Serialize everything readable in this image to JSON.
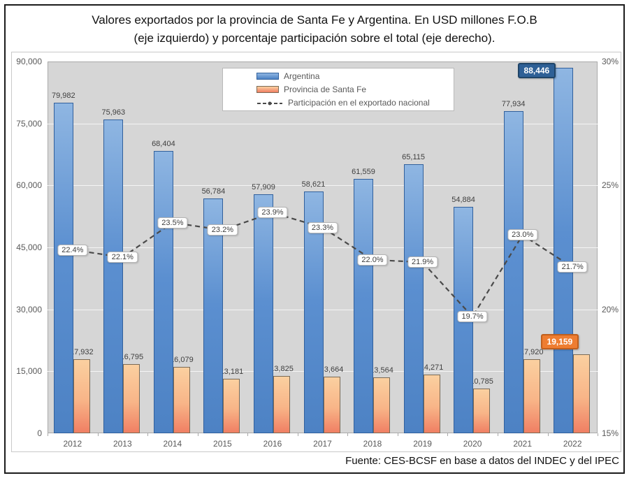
{
  "title_lines": [
    "Valores exportados por la provincia de Santa Fe y Argentina. En USD millones F.O.B",
    "(eje izquierdo) y porcentaje participación sobre el total (eje derecho)."
  ],
  "footer": "Fuente: CES-BCSF en base a datos del INDEC y del IPEC",
  "colors": {
    "plot_background": "#d6d6d6",
    "gridline": "#f4f4f4",
    "argentina_bar": "#5b8fd0",
    "argentina_border": "#31609c",
    "santa_fe_bar": "#f8b588",
    "santa_fe_border": "#7a6a55",
    "line": "#4a4a4a",
    "highlight_blue": "#2e6096",
    "highlight_orange": "#ee7d31"
  },
  "chart_data": {
    "type": "bar",
    "subtype": "grouped-bars-with-line",
    "categories": [
      "2012",
      "2013",
      "2014",
      "2015",
      "2016",
      "2017",
      "2018",
      "2019",
      "2020",
      "2021",
      "2022"
    ],
    "series": [
      {
        "name": "Argentina",
        "type": "bar",
        "axis": "left",
        "values": [
          79982,
          75963,
          68404,
          56784,
          57909,
          58621,
          61559,
          65115,
          54884,
          77934,
          88446
        ]
      },
      {
        "name": "Provincia de Santa Fe",
        "type": "bar",
        "axis": "left",
        "values": [
          17932,
          16795,
          16079,
          13181,
          13825,
          13664,
          13564,
          14271,
          10785,
          17920,
          19159
        ]
      },
      {
        "name": "Participación en el exportado nacional",
        "type": "line",
        "style": "dashed",
        "axis": "right",
        "values": [
          22.4,
          22.1,
          23.5,
          23.2,
          23.9,
          23.3,
          22.0,
          21.9,
          19.7,
          23.0,
          21.7
        ]
      }
    ],
    "left_axis": {
      "min": 0,
      "max": 90000,
      "tick_step": 15000
    },
    "right_axis": {
      "min": 15,
      "max": 30,
      "tick_step": 5,
      "suffix": "%"
    },
    "grid": "horizontal",
    "legend_position": "top-center",
    "highlight_last_category": true
  }
}
